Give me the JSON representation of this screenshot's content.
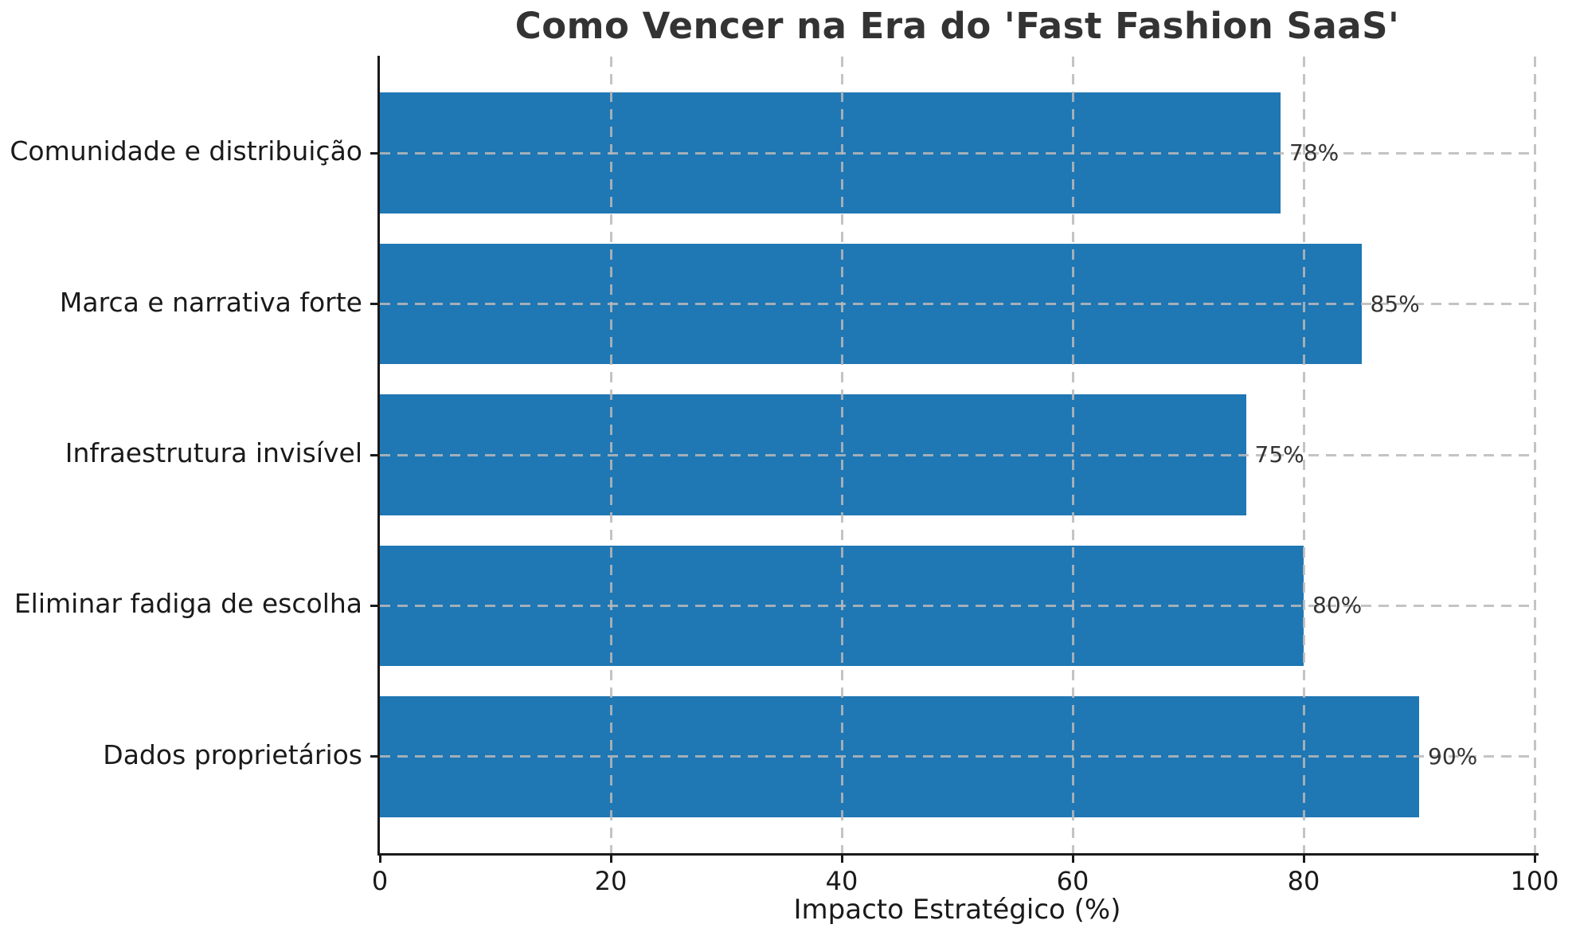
{
  "figure": {
    "background": "#ffffff"
  },
  "chart_data": {
    "type": "bar",
    "orientation": "horizontal",
    "title": "Como Vencer na Era do 'Fast Fashion SaaS'",
    "xlabel": "Impacto Estratégico (%)",
    "ylabel": "",
    "categories": [
      "Comunidade e distribuição",
      "Marca e narrativa forte",
      "Infraestrutura invisível",
      "Eliminar fadiga de escolha",
      "Dados proprietários"
    ],
    "values": [
      78,
      85,
      75,
      80,
      90
    ],
    "value_labels": [
      "78%",
      "85%",
      "75%",
      "80%",
      "90%"
    ],
    "xlim": [
      0,
      100
    ],
    "xticks": [
      0,
      20,
      40,
      60,
      80,
      100
    ],
    "xtick_labels": [
      "0",
      "20",
      "40",
      "60",
      "80",
      "100"
    ],
    "bar_color": "#1f77b4",
    "grid": "dashed",
    "grid_on": true,
    "legend_position": "none",
    "title_color": "#333333",
    "axis_text_color": "#1a1a1a",
    "value_label_color": "#333333"
  }
}
